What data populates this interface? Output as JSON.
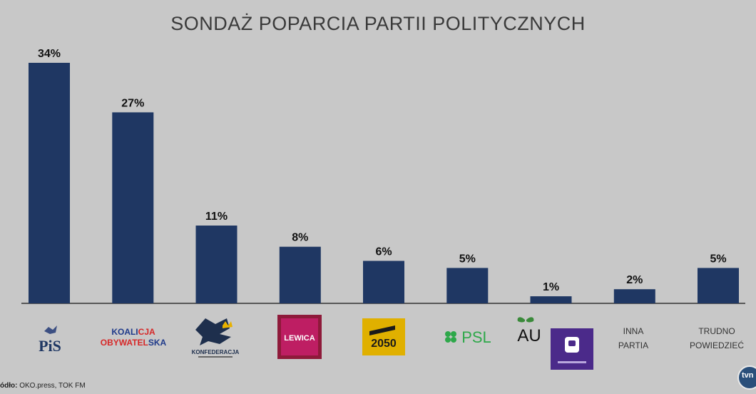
{
  "title": "SONDAŻ POPARCIA PARTII POLITYCZNYCH",
  "source_label": "ódło:",
  "source_text": " OKO.press, TOK FM",
  "broadcaster": "tvn",
  "colors": {
    "bar": "#1f3763",
    "background": "#c8c8c8",
    "axis": "#333333"
  },
  "logos": {
    "pis": "PiS",
    "ko_1a": "KOALI",
    "ko_1b": "CJA",
    "ko_2a": "OBYWATEL",
    "ko_2b": "SKA",
    "konfederacja": "KONFEDERACJA",
    "lewica": "LEWICA",
    "polska2050": "2050",
    "psl": "PSL",
    "au": "AU",
    "inna_1": "INNA",
    "inna_2": "PARTIA",
    "trudno_1": "TRUDNO",
    "trudno_2": "POWIEDZIEĆ"
  },
  "chart_data": {
    "type": "bar",
    "title": "SONDAŻ POPARCIA PARTII POLITYCZNYCH",
    "categories": [
      "PiS",
      "Koalicja Obywatelska",
      "Konfederacja",
      "Lewica",
      "Polska 2050",
      "PSL",
      "AU / Porozumienie",
      "Inna partia",
      "Trudno powiedzieć"
    ],
    "values": [
      34,
      27,
      11,
      8,
      6,
      5,
      1,
      2,
      5
    ],
    "value_labels": [
      "34%",
      "27%",
      "11%",
      "8%",
      "6%",
      "5%",
      "1%",
      "2%",
      "5%"
    ],
    "ylim": [
      0,
      34
    ],
    "grid": false,
    "legend": "none"
  }
}
